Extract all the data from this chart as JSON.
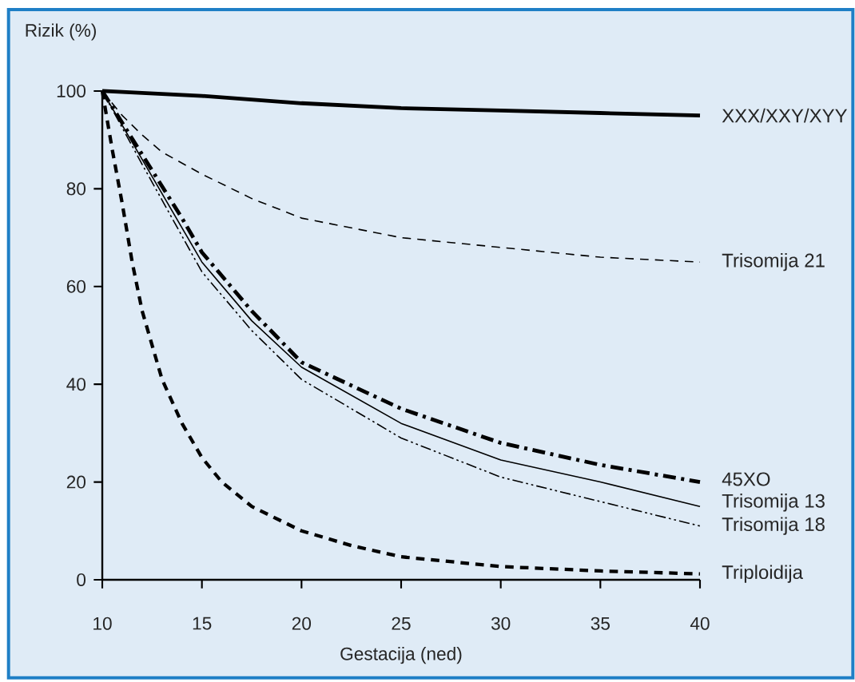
{
  "chart_data": {
    "type": "line",
    "xlabel": "Gestacija (ned)",
    "ylabel": "Rizik (%)",
    "xlim": [
      10,
      40
    ],
    "ylim": [
      0,
      100
    ],
    "xticks": [
      10,
      15,
      20,
      25,
      30,
      35,
      40
    ],
    "yticks": [
      0,
      20,
      40,
      60,
      80,
      100
    ],
    "grid": false,
    "series": [
      {
        "name": "XXX/XXY/XYY",
        "color": "#000000",
        "line_style": "solid",
        "x": [
          10,
          15,
          20,
          25,
          30,
          35,
          40
        ],
        "values": [
          100,
          99,
          97.5,
          96.5,
          96,
          95.5,
          95
        ]
      },
      {
        "name": "Trisomija 21",
        "color": "#000000",
        "line_style": "dashed",
        "x": [
          10,
          11,
          12,
          13,
          15,
          17.5,
          20,
          25,
          30,
          35,
          40
        ],
        "values": [
          100,
          95,
          91,
          87.5,
          83,
          78,
          74,
          70,
          68,
          66,
          65
        ]
      },
      {
        "name": "45XO",
        "color": "#000000",
        "line_style": "dashdot",
        "x": [
          10,
          12,
          14,
          15,
          17.5,
          20,
          25,
          30,
          35,
          40
        ],
        "values": [
          100,
          87,
          74,
          67,
          55,
          44.5,
          35,
          28,
          23.5,
          20
        ]
      },
      {
        "name": "Trisomija 13",
        "color": "#000000",
        "line_style": "solid",
        "x": [
          10,
          12,
          15,
          17.5,
          20,
          25,
          30,
          35,
          40
        ],
        "values": [
          100,
          86,
          65,
          53,
          43.5,
          32,
          24.5,
          20,
          15
        ]
      },
      {
        "name": "Trisomija 18",
        "color": "#000000",
        "line_style": "dashdotdot",
        "x": [
          10,
          12,
          15,
          17.5,
          20,
          25,
          30,
          35,
          40
        ],
        "values": [
          100,
          85,
          63,
          51,
          41,
          29,
          21,
          16,
          11
        ]
      },
      {
        "name": "Triploidija",
        "color": "#000000",
        "line_style": "dashed",
        "x": [
          10,
          10.5,
          11,
          11.5,
          12,
          13,
          14,
          15,
          16,
          17.5,
          20,
          22.5,
          25,
          30,
          35,
          40
        ],
        "values": [
          100,
          88,
          77,
          65,
          55,
          41,
          32,
          25,
          20,
          15,
          10,
          7,
          4.7,
          2.7,
          1.8,
          1.2
        ]
      }
    ]
  }
}
